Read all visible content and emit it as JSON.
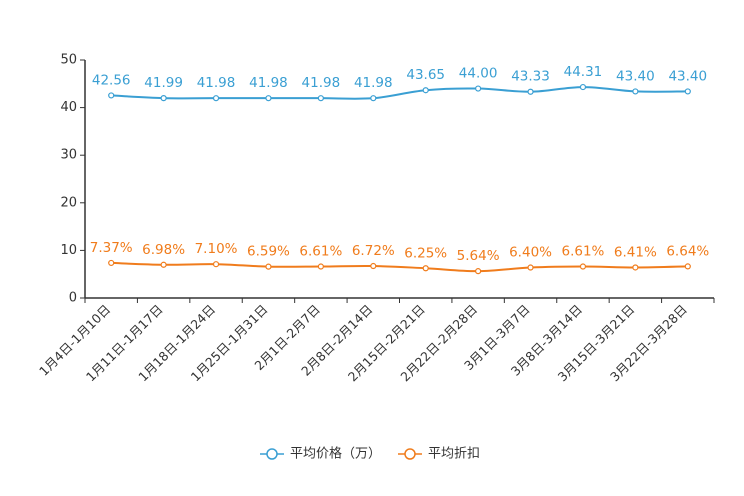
{
  "chart_data": {
    "type": "line",
    "categories": [
      "1月4日-1月10日",
      "1月11日-1月17日",
      "1月18日-1月24日",
      "1月25日-1月31日",
      "2月1日-2月7日",
      "2月8日-2月14日",
      "2月15日-2月21日",
      "2月22日-2月28日",
      "3月1日-3月7日",
      "3月8日-3月14日",
      "3月15日-3月21日",
      "3月22日-3月28日"
    ],
    "series": [
      {
        "name": "平均价格（万）",
        "color": "#3a9fd3",
        "values": [
          42.56,
          41.99,
          41.98,
          41.98,
          41.98,
          41.98,
          43.65,
          44.0,
          43.33,
          44.31,
          43.4,
          43.4
        ],
        "labels": [
          "42.56",
          "41.99",
          "41.98",
          "41.98",
          "41.98",
          "41.98",
          "43.65",
          "44.00",
          "43.33",
          "44.31",
          "43.40",
          "43.40"
        ]
      },
      {
        "name": "平均折扣",
        "color": "#f07c1c",
        "values": [
          7.37,
          6.98,
          7.1,
          6.59,
          6.61,
          6.72,
          6.25,
          5.64,
          6.4,
          6.61,
          6.41,
          6.64
        ],
        "labels": [
          "7.37%",
          "6.98%",
          "7.10%",
          "6.59%",
          "6.61%",
          "6.72%",
          "6.25%",
          "5.64%",
          "6.40%",
          "6.61%",
          "6.41%",
          "6.64%"
        ]
      }
    ],
    "yticks": [
      "0",
      "10",
      "20",
      "30",
      "40",
      "50"
    ],
    "ylim": [
      0,
      50
    ],
    "legend_position": "bottom-center",
    "grid": false
  }
}
